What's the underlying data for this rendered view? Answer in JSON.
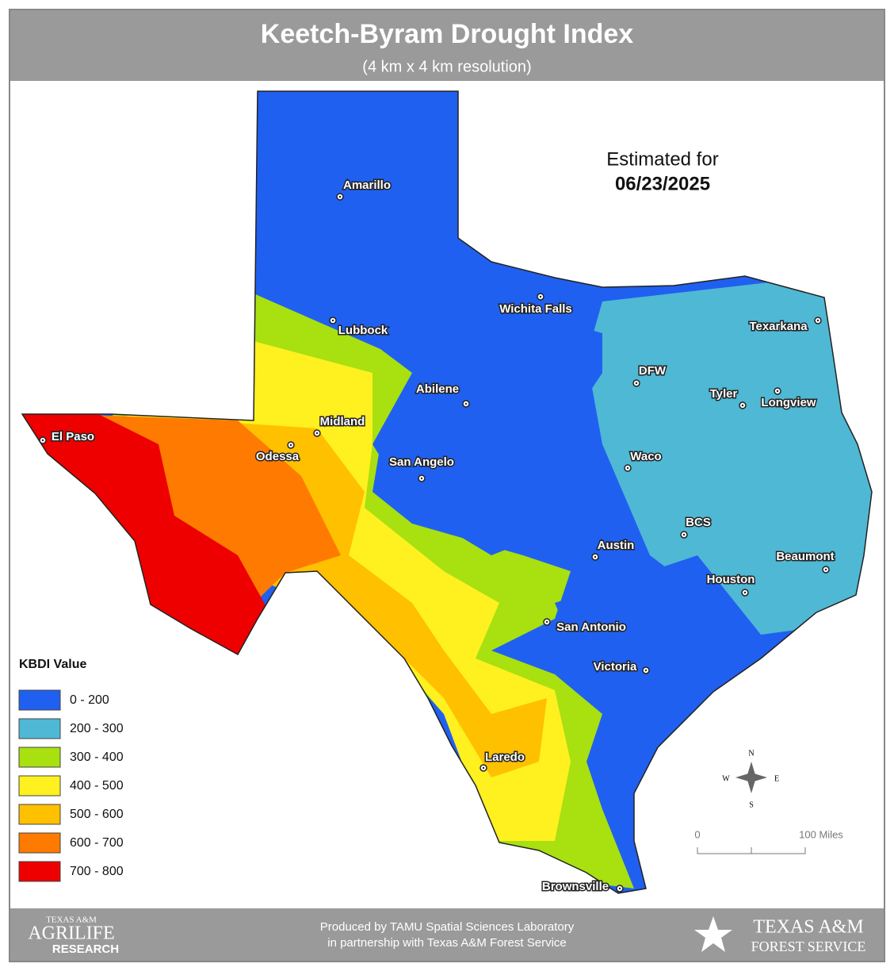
{
  "header": {
    "title": "Keetch-Byram Drought Index",
    "subtitle": "(4 km x 4 km resolution)"
  },
  "estimate": {
    "label": "Estimated for",
    "date": "06/23/2025"
  },
  "cities": [
    "Amarillo",
    "Wichita Falls",
    "Lubbock",
    "Texarkana",
    "DFW",
    "Abilene",
    "Tyler",
    "Longview",
    "Midland",
    "El Paso",
    "Odessa",
    "San Angelo",
    "Waco",
    "BCS",
    "Austin",
    "Beaumont",
    "Houston",
    "San Antonio",
    "Victoria",
    "Laredo",
    "Brownsville"
  ],
  "legend": {
    "title": "KBDI Value",
    "items": [
      {
        "label": "0 - 200",
        "color": "#2060f0"
      },
      {
        "label": "200 - 300",
        "color": "#4fb8d4"
      },
      {
        "label": "300 - 400",
        "color": "#a8e010"
      },
      {
        "label": "400 - 500",
        "color": "#fff020"
      },
      {
        "label": "500 - 600",
        "color": "#ffc000"
      },
      {
        "label": "600 - 700",
        "color": "#ff7a00"
      },
      {
        "label": "700 - 800",
        "color": "#ee0000"
      }
    ]
  },
  "compass": {
    "n": "N",
    "s": "S",
    "e": "E",
    "w": "W"
  },
  "scale": {
    "start": "0",
    "end": "100 Miles"
  },
  "footer": {
    "credit_lines": [
      "Produced by TAMU Spatial Sciences Laboratory",
      "in partnership with Texas A&M Forest Service"
    ],
    "left_logo": [
      "TEXAS A&M",
      "AGRILIFE",
      "RESEARCH"
    ],
    "right_logo": [
      "TEXAS A&M",
      "FOREST SERVICE"
    ]
  }
}
